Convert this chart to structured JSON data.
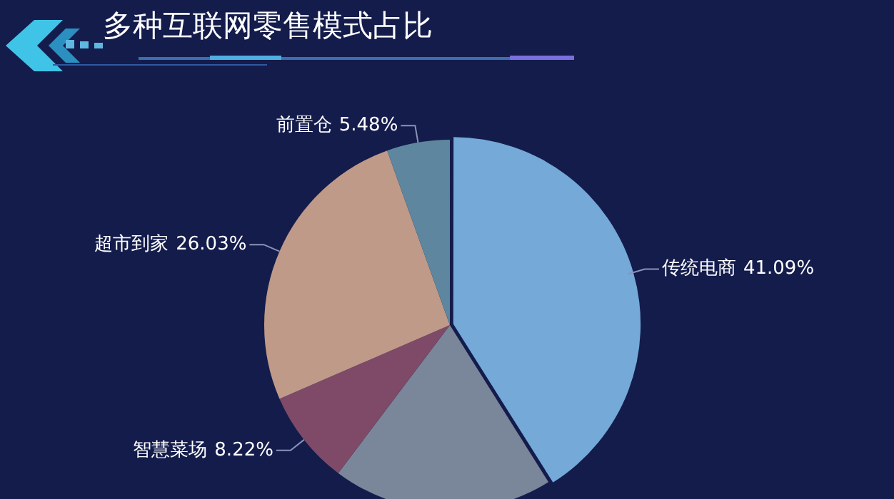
{
  "chart_data": {
    "type": "pie",
    "title": "多种互联网零售模式占比",
    "categories": [
      "传统电商",
      null,
      "智慧菜场",
      "超市到家",
      "前置仓"
    ],
    "values": [
      41.09,
      19.18,
      8.22,
      26.03,
      5.48
    ],
    "colors": [
      "#74a9d8",
      "#7a8699",
      "#7e4a68",
      "#c09a88",
      "#5e879f"
    ],
    "value_labels": [
      "41.09%",
      null,
      "8.22%",
      "26.03%",
      "5.48%"
    ],
    "legend": false
  }
}
